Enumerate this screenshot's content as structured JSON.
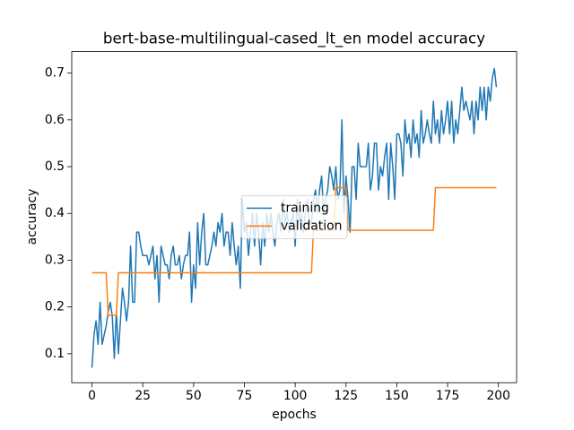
{
  "chart_data": {
    "type": "line",
    "title": "bert-base-multilingual-cased_lt_en model accuracy",
    "x_label": "epochs",
    "y_label": "accuracy",
    "x": [
      0,
      1,
      2,
      3,
      4,
      5,
      6,
      7,
      8,
      9,
      10,
      11,
      12,
      13,
      14,
      15,
      16,
      17,
      18,
      19,
      20,
      21,
      22,
      23,
      24,
      25,
      26,
      27,
      28,
      29,
      30,
      31,
      32,
      33,
      34,
      35,
      36,
      37,
      38,
      39,
      40,
      41,
      42,
      43,
      44,
      45,
      46,
      47,
      48,
      49,
      50,
      51,
      52,
      53,
      54,
      55,
      56,
      57,
      58,
      59,
      60,
      61,
      62,
      63,
      64,
      65,
      66,
      67,
      68,
      69,
      70,
      71,
      72,
      73,
      74,
      75,
      76,
      77,
      78,
      79,
      80,
      81,
      82,
      83,
      84,
      85,
      86,
      87,
      88,
      89,
      90,
      91,
      92,
      93,
      94,
      95,
      96,
      97,
      98,
      99,
      100,
      101,
      102,
      103,
      104,
      105,
      106,
      107,
      108,
      109,
      110,
      111,
      112,
      113,
      114,
      115,
      116,
      117,
      118,
      119,
      120,
      121,
      122,
      123,
      124,
      125,
      126,
      127,
      128,
      129,
      130,
      131,
      132,
      133,
      134,
      135,
      136,
      137,
      138,
      139,
      140,
      141,
      142,
      143,
      144,
      145,
      146,
      147,
      148,
      149,
      150,
      151,
      152,
      153,
      154,
      155,
      156,
      157,
      158,
      159,
      160,
      161,
      162,
      163,
      164,
      165,
      166,
      167,
      168,
      169,
      170,
      171,
      172,
      173,
      174,
      175,
      176,
      177,
      178,
      179,
      180,
      181,
      182,
      183,
      184,
      185,
      186,
      187,
      188,
      189,
      190,
      191,
      192,
      193,
      194,
      195,
      196,
      197,
      198,
      199
    ],
    "series": [
      {
        "name": "training",
        "color": "#1f77b4",
        "values": [
          0.07,
          0.14,
          0.17,
          0.12,
          0.21,
          0.12,
          0.14,
          0.16,
          0.19,
          0.21,
          0.18,
          0.09,
          0.19,
          0.1,
          0.17,
          0.24,
          0.21,
          0.17,
          0.21,
          0.33,
          0.21,
          0.21,
          0.36,
          0.36,
          0.33,
          0.31,
          0.31,
          0.31,
          0.29,
          0.31,
          0.33,
          0.26,
          0.31,
          0.21,
          0.33,
          0.31,
          0.29,
          0.29,
          0.26,
          0.31,
          0.33,
          0.29,
          0.29,
          0.31,
          0.26,
          0.29,
          0.31,
          0.31,
          0.36,
          0.21,
          0.29,
          0.24,
          0.38,
          0.29,
          0.36,
          0.4,
          0.29,
          0.29,
          0.31,
          0.33,
          0.36,
          0.33,
          0.38,
          0.36,
          0.4,
          0.33,
          0.36,
          0.36,
          0.31,
          0.38,
          0.33,
          0.29,
          0.33,
          0.24,
          0.43,
          0.36,
          0.38,
          0.31,
          0.36,
          0.4,
          0.33,
          0.4,
          0.36,
          0.29,
          0.38,
          0.33,
          0.4,
          0.36,
          0.4,
          0.36,
          0.33,
          0.38,
          0.4,
          0.36,
          0.43,
          0.38,
          0.4,
          0.36,
          0.38,
          0.4,
          0.33,
          0.43,
          0.38,
          0.4,
          0.36,
          0.4,
          0.43,
          0.38,
          0.38,
          0.43,
          0.45,
          0.4,
          0.45,
          0.48,
          0.4,
          0.43,
          0.45,
          0.5,
          0.48,
          0.45,
          0.5,
          0.43,
          0.45,
          0.6,
          0.4,
          0.48,
          0.43,
          0.36,
          0.5,
          0.5,
          0.43,
          0.55,
          0.5,
          0.5,
          0.5,
          0.5,
          0.55,
          0.45,
          0.48,
          0.55,
          0.55,
          0.45,
          0.5,
          0.48,
          0.52,
          0.55,
          0.43,
          0.55,
          0.5,
          0.43,
          0.57,
          0.57,
          0.55,
          0.48,
          0.6,
          0.55,
          0.57,
          0.52,
          0.6,
          0.55,
          0.57,
          0.52,
          0.62,
          0.55,
          0.57,
          0.6,
          0.57,
          0.55,
          0.64,
          0.57,
          0.6,
          0.55,
          0.62,
          0.57,
          0.6,
          0.64,
          0.57,
          0.64,
          0.55,
          0.6,
          0.57,
          0.62,
          0.67,
          0.62,
          0.64,
          0.62,
          0.6,
          0.64,
          0.57,
          0.64,
          0.6,
          0.67,
          0.62,
          0.67,
          0.6,
          0.67,
          0.64,
          0.69,
          0.71,
          0.67
        ]
      },
      {
        "name": "validation",
        "color": "#ff7f0e",
        "values": [
          0.273,
          0.273,
          0.273,
          0.273,
          0.273,
          0.273,
          0.273,
          0.273,
          0.182,
          0.182,
          0.182,
          0.182,
          0.182,
          0.273,
          0.273,
          0.273,
          0.273,
          0.273,
          0.273,
          0.273,
          0.273,
          0.273,
          0.273,
          0.273,
          0.273,
          0.273,
          0.273,
          0.273,
          0.273,
          0.273,
          0.273,
          0.273,
          0.273,
          0.273,
          0.273,
          0.273,
          0.273,
          0.273,
          0.273,
          0.273,
          0.273,
          0.273,
          0.273,
          0.273,
          0.273,
          0.273,
          0.273,
          0.273,
          0.273,
          0.273,
          0.273,
          0.273,
          0.273,
          0.273,
          0.273,
          0.273,
          0.273,
          0.273,
          0.273,
          0.273,
          0.273,
          0.273,
          0.273,
          0.273,
          0.273,
          0.273,
          0.273,
          0.273,
          0.273,
          0.273,
          0.273,
          0.273,
          0.273,
          0.273,
          0.273,
          0.273,
          0.273,
          0.273,
          0.273,
          0.273,
          0.273,
          0.273,
          0.273,
          0.273,
          0.273,
          0.273,
          0.273,
          0.273,
          0.273,
          0.273,
          0.273,
          0.273,
          0.273,
          0.273,
          0.273,
          0.273,
          0.273,
          0.273,
          0.273,
          0.273,
          0.273,
          0.273,
          0.273,
          0.273,
          0.273,
          0.273,
          0.273,
          0.273,
          0.273,
          0.364,
          0.364,
          0.364,
          0.364,
          0.364,
          0.364,
          0.364,
          0.364,
          0.364,
          0.364,
          0.364,
          0.455,
          0.455,
          0.455,
          0.455,
          0.455,
          0.455,
          0.364,
          0.364,
          0.364,
          0.364,
          0.364,
          0.364,
          0.364,
          0.364,
          0.364,
          0.364,
          0.364,
          0.364,
          0.364,
          0.364,
          0.364,
          0.364,
          0.364,
          0.364,
          0.364,
          0.364,
          0.364,
          0.364,
          0.364,
          0.364,
          0.364,
          0.364,
          0.364,
          0.364,
          0.364,
          0.364,
          0.364,
          0.364,
          0.364,
          0.364,
          0.364,
          0.364,
          0.364,
          0.364,
          0.364,
          0.364,
          0.364,
          0.364,
          0.364,
          0.455,
          0.455,
          0.455,
          0.455,
          0.455,
          0.455,
          0.455,
          0.455,
          0.455,
          0.455,
          0.455,
          0.455,
          0.455,
          0.455,
          0.455,
          0.455,
          0.455,
          0.455,
          0.455,
          0.455,
          0.455,
          0.455,
          0.455,
          0.455,
          0.455,
          0.455,
          0.455,
          0.455,
          0.455,
          0.455,
          0.455
        ]
      }
    ],
    "xlim": [
      -9.95,
      208.95
    ],
    "xticks": [
      0,
      25,
      50,
      75,
      100,
      125,
      150,
      175,
      200
    ],
    "ylim": [
      0.038,
      0.746
    ],
    "yticks": [
      0.1,
      0.2,
      0.3,
      0.4,
      0.5,
      0.6,
      0.7
    ],
    "legend": "center"
  }
}
